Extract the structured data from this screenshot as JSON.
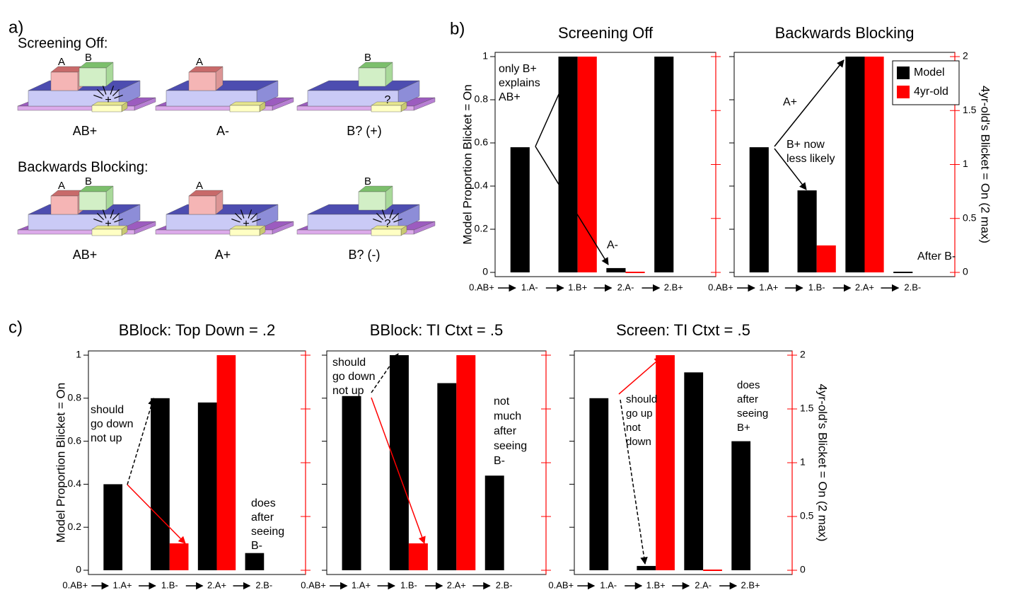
{
  "panel_labels": [
    "a)",
    "b)",
    "c)"
  ],
  "diagram": {
    "rows": [
      {
        "title": "Screening Off:",
        "scenes": [
          {
            "caption": "AB+",
            "blocks": [
              "A",
              "B"
            ],
            "detector": "+"
          },
          {
            "caption": "A-",
            "blocks": [
              "A"
            ]
          },
          {
            "caption": "B? (+)",
            "blocks": [
              "B"
            ],
            "detector": "?"
          }
        ]
      },
      {
        "title": "Backwards Blocking:",
        "scenes": [
          {
            "caption": "AB+",
            "blocks": [
              "A",
              "B"
            ],
            "detector": "+"
          },
          {
            "caption": "A+",
            "blocks": [
              "A"
            ],
            "detector": "+"
          },
          {
            "caption": "B? (-)",
            "blocks": [
              "B"
            ],
            "detector": "?"
          }
        ]
      }
    ]
  },
  "chart_data": [
    {
      "type": "bar",
      "title": "Screening Off",
      "categories": [
        "0.AB+",
        "1.A-",
        "1.B+",
        "2.A-",
        "2.B+"
      ],
      "series": [
        {
          "color": "#000000",
          "values": [
            null,
            0.58,
            1,
            0.02,
            1
          ]
        },
        {
          "color": "#ff0000",
          "axis": "y2",
          "values": [
            null,
            null,
            2,
            0,
            null
          ]
        }
      ],
      "ylim": [
        0,
        1
      ],
      "yticks": [
        0,
        0.2,
        0.4,
        0.6,
        0.8,
        1
      ],
      "ytick_labels": true,
      "y2lim": [
        0,
        2
      ],
      "y2ticks": [
        0,
        0.5,
        1,
        1.5,
        2
      ],
      "y2tick_labels": false,
      "ylabel": "Model Proportion Blicket = On",
      "annotations": [
        [
          "only B+",
          "explains",
          "AB+"
        ],
        [
          "A-"
        ]
      ]
    },
    {
      "type": "bar",
      "title": "Backwards Blocking",
      "categories": [
        "0.AB+",
        "1.A+",
        "1.B-",
        "2.A+",
        "2.B-"
      ],
      "series": [
        {
          "name": "Model",
          "color": "#000000",
          "values": [
            null,
            0.58,
            0.38,
            1,
            0
          ]
        },
        {
          "name": "4yr-old",
          "color": "#ff0000",
          "axis": "y2",
          "values": [
            null,
            null,
            0.25,
            2,
            null
          ]
        }
      ],
      "ylim": [
        0,
        1
      ],
      "yticks": [
        0,
        0.2,
        0.4,
        0.6,
        0.8,
        1
      ],
      "ytick_labels": false,
      "y2lim": [
        0,
        2
      ],
      "y2ticks": [
        0,
        0.5,
        1,
        1.5,
        2
      ],
      "y2tick_labels": true,
      "y2label": "4yr-old's Blicket = On (2 max)",
      "legend": "upper right",
      "annotations": [
        [
          "A+"
        ],
        [
          "B+ now",
          "less likely"
        ],
        [
          "After B-"
        ]
      ]
    },
    {
      "type": "bar",
      "title": "BBlock: Top Down = .2",
      "categories": [
        "0.AB+",
        "1.A+",
        "1.B-",
        "2.A+",
        "2.B-"
      ],
      "series": [
        {
          "color": "#000000",
          "values": [
            null,
            0.4,
            0.8,
            0.78,
            0.08
          ]
        },
        {
          "color": "#ff0000",
          "axis": "y2",
          "values": [
            null,
            null,
            0.25,
            2,
            null
          ]
        }
      ],
      "ylim": [
        0,
        1
      ],
      "yticks": [
        0,
        0.2,
        0.4,
        0.6,
        0.8,
        1
      ],
      "ytick_labels": true,
      "y2lim": [
        0,
        2
      ],
      "y2ticks": [
        0,
        0.5,
        1,
        1.5,
        2
      ],
      "y2tick_labels": false,
      "ylabel": "Model Proportion Blicket = On",
      "annotations": [
        [
          "should",
          "go down",
          "not up"
        ],
        [
          "does",
          "after",
          "seeing",
          "B-"
        ]
      ]
    },
    {
      "type": "bar",
      "title": "BBlock: TI Ctxt = .5",
      "categories": [
        "0.AB+",
        "1.A+",
        "1.B-",
        "2.A+",
        "2.B-"
      ],
      "series": [
        {
          "color": "#000000",
          "values": [
            null,
            0.81,
            1,
            0.87,
            0.44
          ]
        },
        {
          "color": "#ff0000",
          "axis": "y2",
          "values": [
            null,
            null,
            0.25,
            2,
            null
          ]
        }
      ],
      "ylim": [
        0,
        1
      ],
      "yticks": [
        0,
        0.2,
        0.4,
        0.6,
        0.8,
        1
      ],
      "ytick_labels": false,
      "y2lim": [
        0,
        2
      ],
      "y2ticks": [
        0,
        0.5,
        1,
        1.5,
        2
      ],
      "y2tick_labels": false,
      "annotations": [
        [
          "should",
          "go down",
          "not up"
        ],
        [
          "not",
          "much",
          "after",
          "seeing",
          "B-"
        ]
      ]
    },
    {
      "type": "bar",
      "title": "Screen: TI Ctxt = .5",
      "categories": [
        "0.AB+",
        "1.A-",
        "1.B+",
        "2.A-",
        "2.B+"
      ],
      "series": [
        {
          "color": "#000000",
          "values": [
            null,
            0.8,
            0.02,
            0.92,
            0.6
          ]
        },
        {
          "color": "#ff0000",
          "axis": "y2",
          "values": [
            null,
            null,
            2,
            0,
            null
          ]
        }
      ],
      "ylim": [
        0,
        1
      ],
      "yticks": [
        0,
        0.2,
        0.4,
        0.6,
        0.8,
        1
      ],
      "ytick_labels": false,
      "y2lim": [
        0,
        2
      ],
      "y2ticks": [
        0,
        0.5,
        1,
        1.5,
        2
      ],
      "y2tick_labels": true,
      "y2label": "4yr-old's Blicket = On (2 max)",
      "annotations": [
        [
          "should",
          "go up",
          "not",
          "down"
        ],
        [
          "does",
          "after",
          "seeing",
          "B+"
        ]
      ]
    }
  ]
}
